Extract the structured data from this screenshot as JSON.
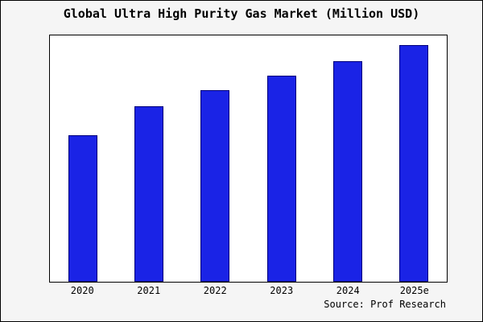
{
  "chart_data": {
    "type": "bar",
    "title": "Global Ultra High Purity Gas Market (Million USD)",
    "categories": [
      "2020",
      "2021",
      "2022",
      "2023",
      "2024",
      "2025e"
    ],
    "values": [
      62,
      74,
      81,
      87,
      93,
      100
    ],
    "xlabel": "",
    "ylabel": "",
    "ylim": [
      0,
      104
    ],
    "grid": false,
    "legend_position": "none",
    "bar_color": "#1a23e6",
    "bar_border_color": "#00007a",
    "plot_background": "#ffffff",
    "outer_background": "#f5f5f5"
  },
  "source": "Source: Prof Research"
}
